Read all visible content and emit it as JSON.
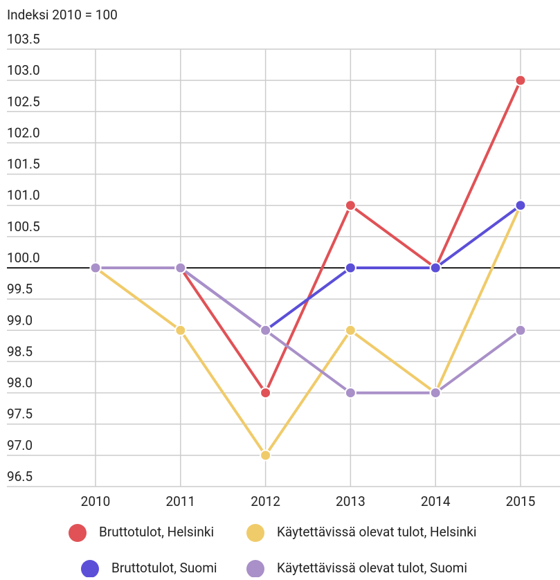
{
  "chart_data": {
    "type": "line",
    "title": "Indeksi 2010 = 100",
    "categories": [
      "2010",
      "2011",
      "2012",
      "2013",
      "2014",
      "2015"
    ],
    "series": [
      {
        "name": "Käytettävissä olevat tulot, Helsinki",
        "color": "#f0cb6a",
        "values": [
          100,
          99,
          97,
          99,
          98,
          101
        ]
      },
      {
        "name": "Bruttotulot, Helsinki",
        "color": "#e05256",
        "values": [
          100,
          100,
          98,
          101,
          100,
          103
        ]
      },
      {
        "name": "Bruttotulot, Suomi",
        "color": "#5b4fd8",
        "values": [
          100,
          100,
          99,
          100,
          100,
          101
        ]
      },
      {
        "name": "Käytettävissä olevat tulot, Suomi",
        "color": "#a990c8",
        "values": [
          100,
          100,
          99,
          98,
          98,
          99
        ]
      }
    ],
    "ylim": [
      96.5,
      103.5
    ],
    "yticks": [
      96.5,
      {
        "value": 97,
        "label": "97.0"
      },
      97.5,
      {
        "value": 98,
        "label": "98.0"
      },
      98.5,
      {
        "value": 99,
        "label": "99.0"
      },
      99.5,
      {
        "value": 100,
        "label": "100.0"
      },
      100.5,
      {
        "value": 101,
        "label": "101.0"
      },
      101.5,
      {
        "value": 102,
        "label": "102.0"
      },
      102.5,
      {
        "value": 103,
        "label": "103.0"
      },
      103.5
    ],
    "baseline": 100,
    "grid": true
  }
}
